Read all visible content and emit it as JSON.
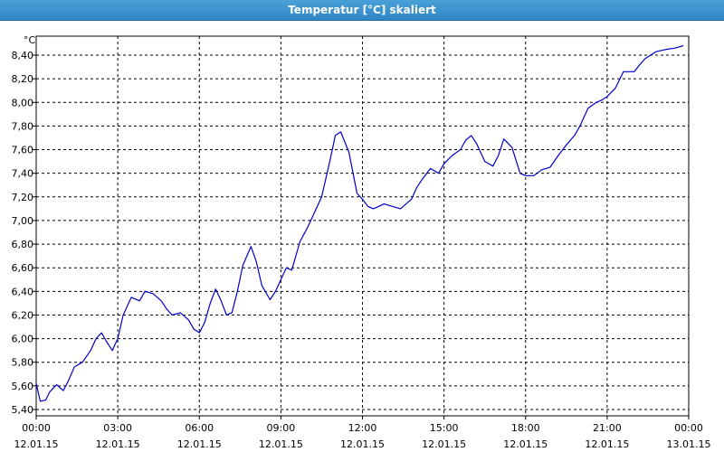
{
  "window": {
    "title": "Temperatur [°C] skaliert"
  },
  "chart_data": {
    "type": "line",
    "unit_label": "°C",
    "ylim": [
      5.4,
      8.5
    ],
    "y_ticks": [
      "5,40",
      "5,60",
      "5,80",
      "6,00",
      "6,20",
      "6,40",
      "6,60",
      "6,80",
      "7,00",
      "7,20",
      "7,40",
      "7,60",
      "7,80",
      "8,00",
      "8,20",
      "8,40"
    ],
    "x_ticks": [
      {
        "time": "00:00",
        "date": "12.01.15"
      },
      {
        "time": "03:00",
        "date": "12.01.15"
      },
      {
        "time": "06:00",
        "date": "12.01.15"
      },
      {
        "time": "09:00",
        "date": "12.01.15"
      },
      {
        "time": "12:00",
        "date": "12.01.15"
      },
      {
        "time": "15:00",
        "date": "12.01.15"
      },
      {
        "time": "18:00",
        "date": "12.01.15"
      },
      {
        "time": "21:00",
        "date": "12.01.15"
      },
      {
        "time": "00:00",
        "date": "13.01.15"
      }
    ],
    "grid": true,
    "line_color": "#0000cc",
    "series": [
      {
        "x": [
          0,
          0.15,
          0.35,
          0.5,
          0.75,
          1,
          1.2,
          1.4,
          1.7,
          2,
          2.2,
          2.4,
          2.6,
          2.8,
          3,
          3.2,
          3.5,
          3.8,
          4,
          4.3,
          4.6,
          4.8,
          5,
          5.3,
          5.6,
          5.8,
          6,
          6.2,
          6.4,
          6.6,
          6.8,
          7,
          7.2,
          7.4,
          7.6,
          7.9,
          8.1,
          8.3,
          8.6,
          8.8,
          9,
          9.2,
          9.4,
          9.7,
          10,
          10.2,
          10.5,
          10.8,
          11,
          11.2,
          11.5,
          11.8,
          12,
          12.2,
          12.4,
          12.6,
          12.8,
          13.1,
          13.4,
          13.6,
          13.8,
          14,
          14.2,
          14.5,
          14.8,
          15,
          15.3,
          15.6,
          15.8,
          16,
          16.2,
          16.5,
          16.8,
          17,
          17.2,
          17.5,
          17.8,
          18,
          18.3,
          18.6,
          18.9,
          19.2,
          19.5,
          19.8,
          20,
          20.3,
          20.6,
          20.8,
          21,
          21.3,
          21.6,
          21.8,
          22,
          22.2,
          22.4,
          22.6,
          22.8,
          23,
          23.2,
          23.5,
          23.8
        ],
        "y": [
          5.62,
          5.47,
          5.48,
          5.55,
          5.61,
          5.56,
          5.65,
          5.76,
          5.8,
          5.9,
          6.0,
          6.05,
          5.97,
          5.9,
          6.0,
          6.2,
          6.35,
          6.32,
          6.4,
          6.38,
          6.32,
          6.25,
          6.2,
          6.22,
          6.16,
          6.08,
          6.05,
          6.14,
          6.3,
          6.42,
          6.32,
          6.2,
          6.22,
          6.4,
          6.62,
          6.78,
          6.65,
          6.45,
          6.33,
          6.4,
          6.5,
          6.6,
          6.58,
          6.82,
          6.95,
          7.05,
          7.2,
          7.5,
          7.72,
          7.75,
          7.58,
          7.23,
          7.18,
          7.12,
          7.1,
          7.12,
          7.14,
          7.12,
          7.1,
          7.14,
          7.18,
          7.28,
          7.35,
          7.44,
          7.4,
          7.48,
          7.55,
          7.6,
          7.68,
          7.72,
          7.65,
          7.5,
          7.46,
          7.55,
          7.69,
          7.62,
          7.4,
          7.38,
          7.38,
          7.43,
          7.45,
          7.55,
          7.64,
          7.72,
          7.8,
          7.95,
          8.0,
          8.02,
          8.05,
          8.12,
          8.26,
          8.26,
          8.26,
          8.32,
          8.37,
          8.4,
          8.43,
          8.44,
          8.45,
          8.46,
          8.48
        ]
      }
    ]
  }
}
